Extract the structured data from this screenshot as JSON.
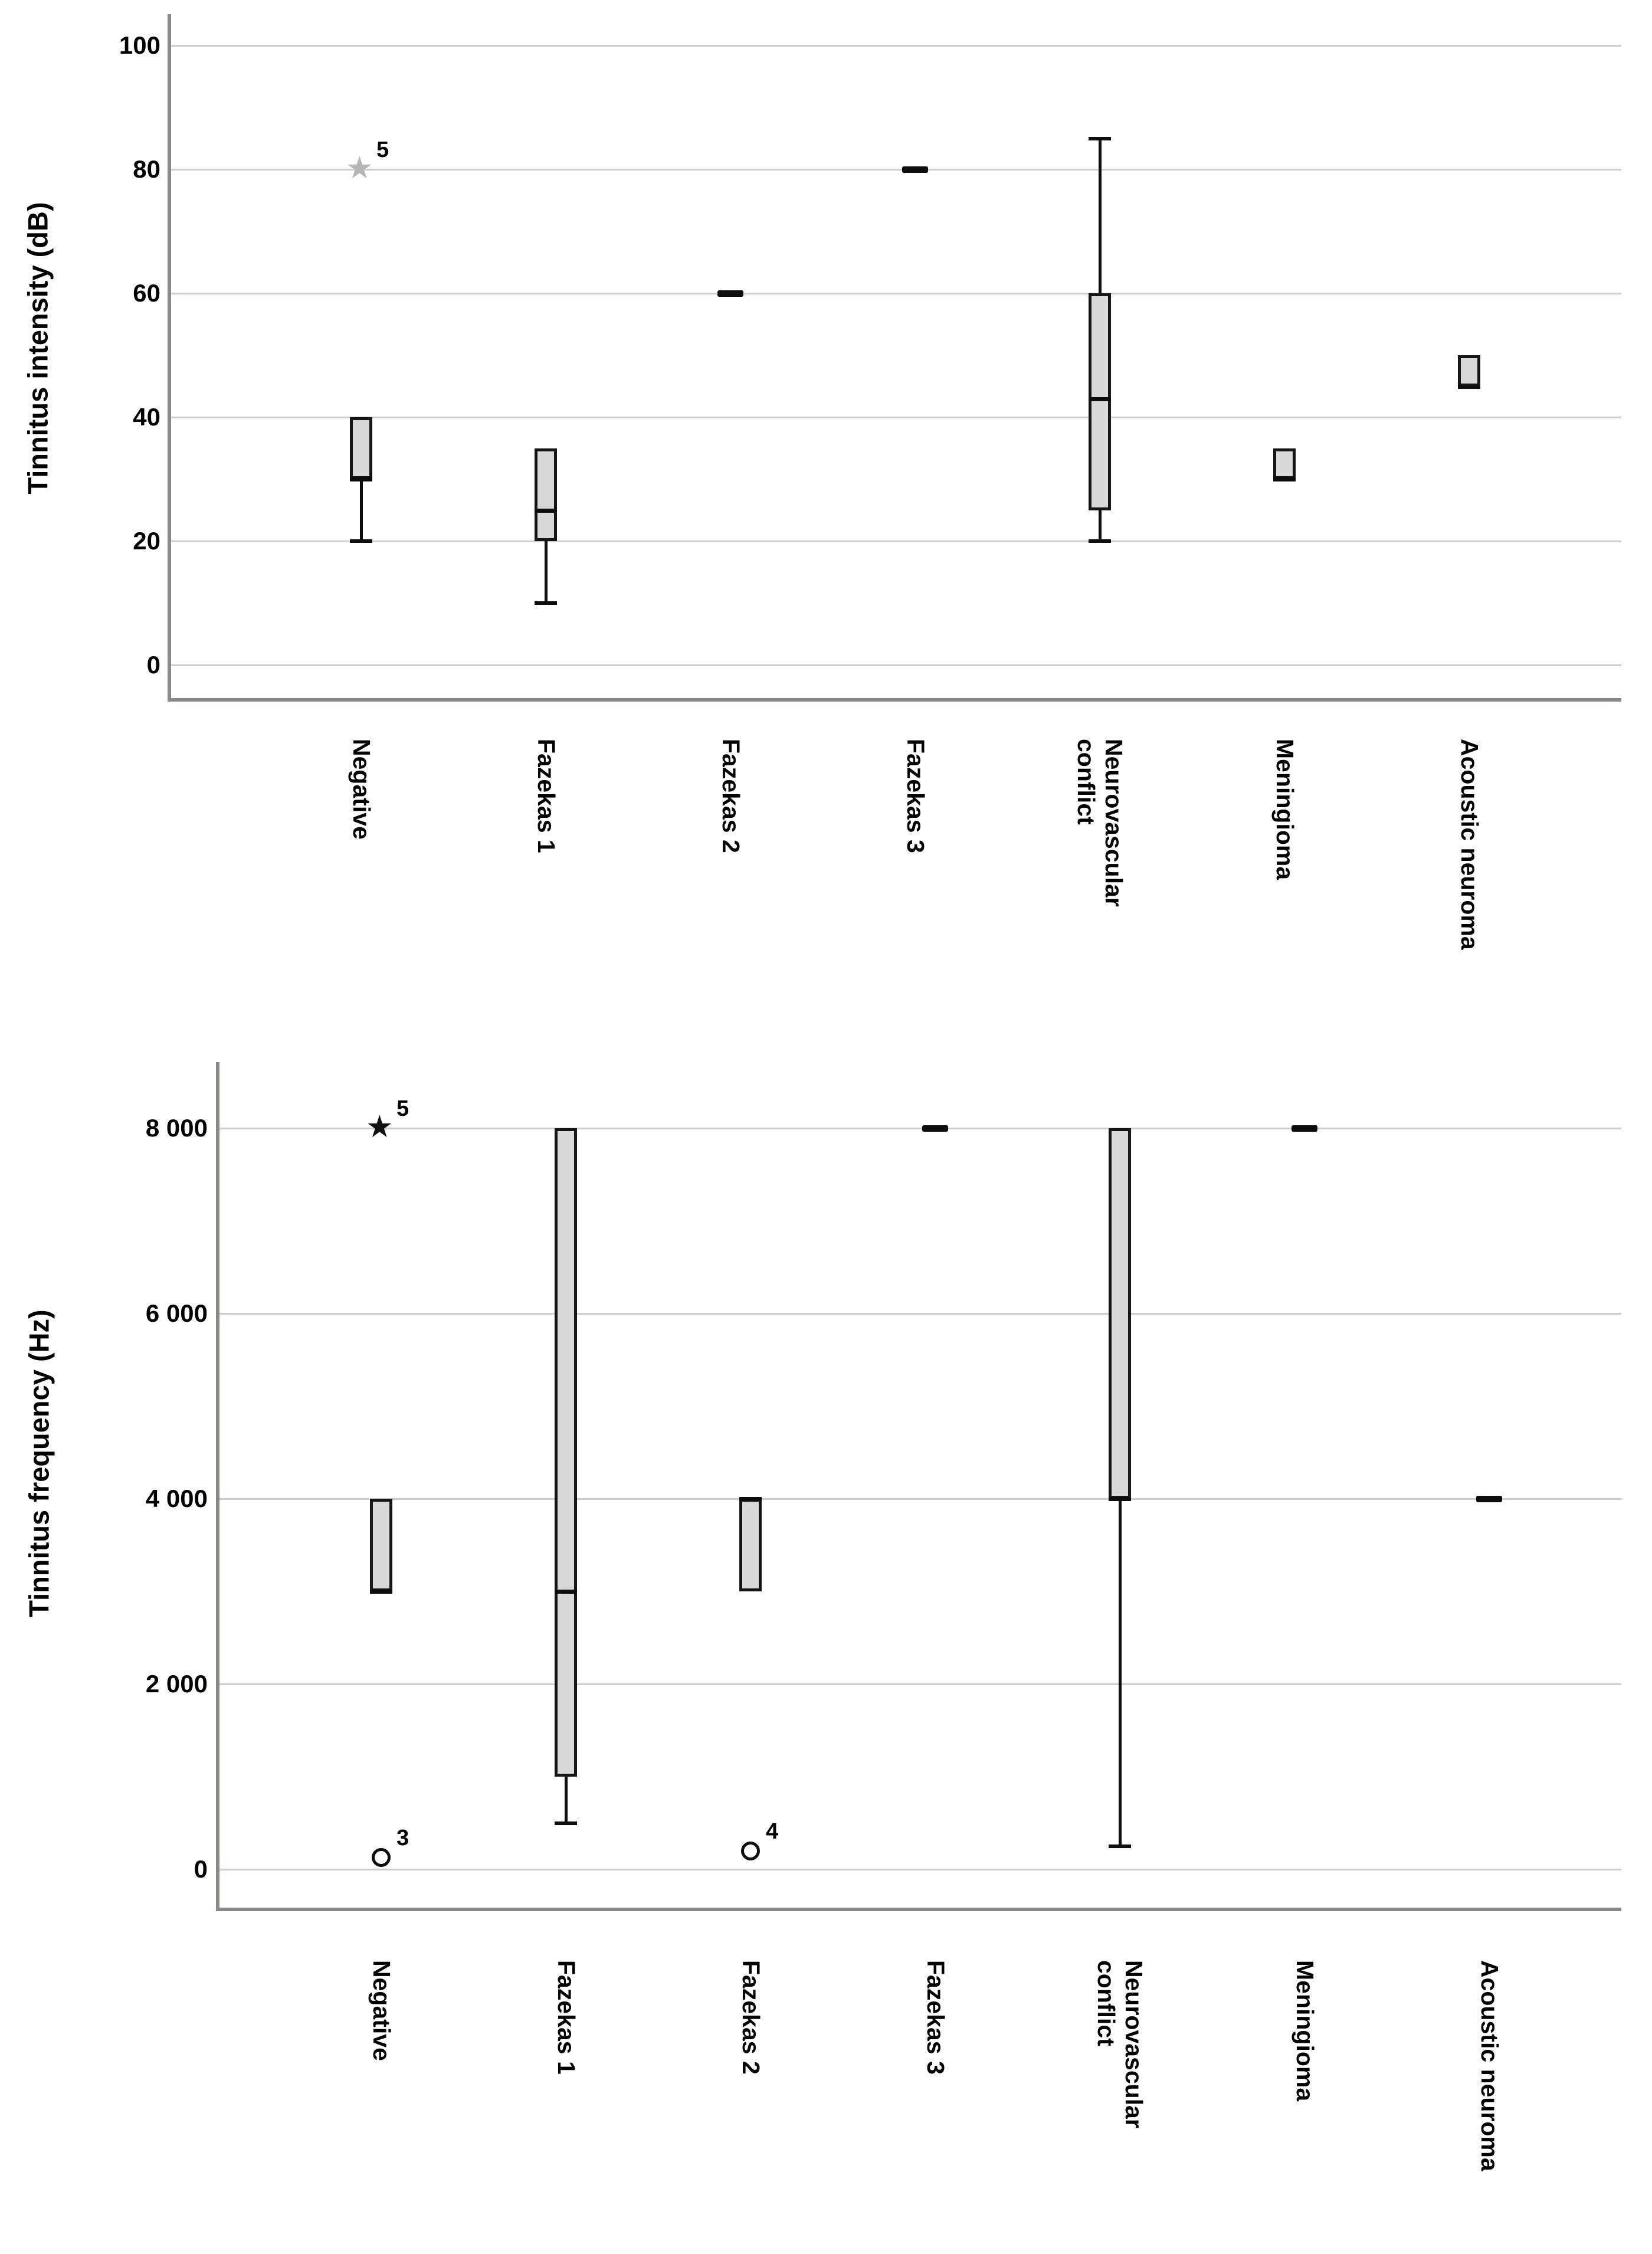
{
  "figure": {
    "background": "#ffffff",
    "description": "Two stacked SPSS-style box plots of tinnitus characteristics by MRI finding group"
  },
  "colors": {
    "box_fill": "#d9d9d9",
    "box_border": "#161616",
    "gridline": "#c9cfc9",
    "axis_line": "#828a82",
    "text": "#000000",
    "star_outlier_top": "#b5b5b5",
    "star_outlier_bottom": "#111111"
  },
  "chart_data": [
    {
      "id": "intensity",
      "type": "box",
      "title": "Tinnitus intensity (dB)",
      "xlabel": "",
      "ylabel": "Tinnitus intensity (dB)",
      "ylim": [
        0,
        105
      ],
      "grid": true,
      "y_axis": {
        "ticks": [
          100,
          80,
          60,
          40,
          20,
          0
        ],
        "tick_labels": [
          "100",
          "80",
          "60",
          "40",
          "20",
          "0"
        ]
      },
      "categories": [
        "Negative",
        "Fazekas 1",
        "Fazekas 2",
        "Fazekas 3",
        "Neurovascular\nconflict",
        "Meningioma",
        "Acoustic neuroma"
      ],
      "series": [
        {
          "category": "Negative",
          "min": 20,
          "q1": 30,
          "median": 30,
          "q3": 40,
          "max": 40,
          "outliers": [
            {
              "value": 80,
              "shape": "star",
              "label": "5",
              "color": "#b5b5b5"
            }
          ]
        },
        {
          "category": "Fazekas 1",
          "min": 10,
          "q1": 20,
          "median": 25,
          "q3": 35,
          "max": 35
        },
        {
          "category": "Fazekas 2",
          "dash": 60
        },
        {
          "category": "Fazekas 3",
          "dash": 80
        },
        {
          "category": "Neurovascular conflict",
          "min": 20,
          "q1": 25,
          "median": 43,
          "q3": 60,
          "max": 85
        },
        {
          "category": "Meningioma",
          "min": 30,
          "q1": 30,
          "median": 30,
          "q3": 35,
          "max": 35
        },
        {
          "category": "Acoustic neuroma",
          "min": 45,
          "q1": 45,
          "median": 45,
          "q3": 50,
          "max": 50
        }
      ]
    },
    {
      "id": "frequency",
      "type": "box",
      "title": "Tinnitus frequency (Hz)",
      "xlabel": "",
      "ylabel": "Tinnitus frequency (Hz)",
      "ylim": [
        0,
        8400
      ],
      "grid": true,
      "y_axis": {
        "ticks": [
          8000,
          6000,
          4000,
          2000,
          0
        ],
        "tick_labels": [
          "8 000",
          "6 000",
          "4 000",
          "2 000",
          "0"
        ]
      },
      "categories": [
        "Negative",
        "Fazekas 1",
        "Fazekas 2",
        "Fazekas 3",
        "Neurovascular\nconflict",
        "Meningioma",
        "Acoustic neuroma"
      ],
      "series": [
        {
          "category": "Negative",
          "min": 3000,
          "q1": 3000,
          "median": 3000,
          "q3": 4000,
          "max": 4000,
          "outliers": [
            {
              "value": 8000,
              "shape": "star",
              "label": "5",
              "color": "#111111"
            },
            {
              "value": 125,
              "shape": "circle",
              "label": "3"
            }
          ]
        },
        {
          "category": "Fazekas 1",
          "min": 500,
          "q1": 1000,
          "median": 3000,
          "q3": 8000,
          "max": 8000
        },
        {
          "category": "Fazekas 2",
          "min": 3000,
          "q1": 3000,
          "median": 4000,
          "q3": 4000,
          "max": 4000,
          "outliers": [
            {
              "value": 200,
              "shape": "circle",
              "label": "4"
            }
          ]
        },
        {
          "category": "Fazekas 3",
          "dash": 8000
        },
        {
          "category": "Neurovascular conflict",
          "min": 250,
          "q1": 4000,
          "median": 4000,
          "q3": 8000,
          "max": 8000
        },
        {
          "category": "Meningioma",
          "dash": 8000
        },
        {
          "category": "Acoustic neuroma",
          "dash": 4000
        }
      ]
    }
  ]
}
